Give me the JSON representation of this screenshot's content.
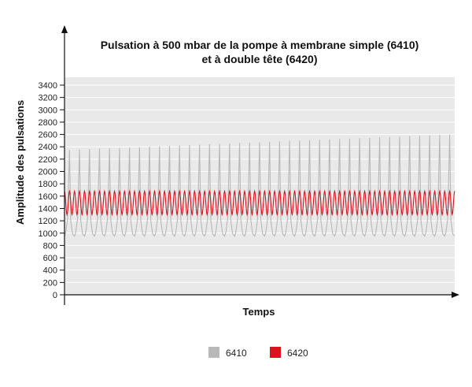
{
  "chart_data": {
    "type": "line",
    "title": [
      "Pulsation à 500 mbar de la pompe à membrane simple (6410)",
      "et à double tête (6420)"
    ],
    "xlabel": "Temps",
    "ylabel": "Amplitude des pulsations",
    "ylim": [
      0,
      3400
    ],
    "yticks": [
      0,
      200,
      400,
      600,
      800,
      1000,
      1200,
      1400,
      1600,
      1800,
      2000,
      2200,
      2400,
      2600,
      2800,
      3000,
      3200,
      3400
    ],
    "grid": true,
    "legend_position": "bottom-center",
    "background_color": "#e9e9e9",
    "series": [
      {
        "name": "6410",
        "color": "#b8b8b8",
        "pattern": "periodic-spike",
        "cycles": 39,
        "min": 950,
        "peak_start": 2350,
        "peak_end": 2600
      },
      {
        "name": "6420",
        "color": "#d9141e",
        "pattern": "sinusoidal",
        "cycles": 78,
        "min": 1300,
        "max": 1680
      }
    ]
  }
}
